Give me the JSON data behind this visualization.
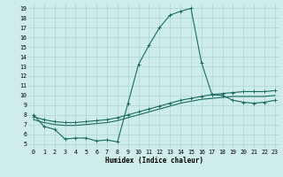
{
  "title": "",
  "xlabel": "Humidex (Indice chaleur)",
  "bg_color": "#ceecea",
  "grid_color": "#aed4d0",
  "line_color": "#1a6b60",
  "xlim": [
    -0.5,
    23.5
  ],
  "ylim": [
    4.5,
    19.5
  ],
  "xticks": [
    0,
    1,
    2,
    3,
    4,
    5,
    6,
    7,
    8,
    9,
    10,
    11,
    12,
    13,
    14,
    15,
    16,
    17,
    18,
    19,
    20,
    21,
    22,
    23
  ],
  "yticks": [
    5,
    6,
    7,
    8,
    9,
    10,
    11,
    12,
    13,
    14,
    15,
    16,
    17,
    18,
    19
  ],
  "series1_x": [
    0,
    1,
    2,
    3,
    4,
    5,
    6,
    7,
    8,
    9,
    10,
    11,
    12,
    13,
    14,
    15,
    16,
    17,
    18,
    19,
    20,
    21,
    22,
    23
  ],
  "series1_y": [
    8.0,
    6.8,
    6.5,
    5.5,
    5.6,
    5.6,
    5.3,
    5.4,
    5.2,
    9.2,
    13.2,
    15.2,
    17.0,
    18.3,
    18.7,
    19.0,
    13.4,
    10.1,
    10.0,
    9.5,
    9.3,
    9.2,
    9.3,
    9.5
  ],
  "series2_x": [
    0,
    1,
    2,
    3,
    4,
    5,
    6,
    7,
    8,
    9,
    10,
    11,
    12,
    13,
    14,
    15,
    16,
    17,
    18,
    19,
    20,
    21,
    22,
    23
  ],
  "series2_y": [
    7.8,
    7.5,
    7.3,
    7.2,
    7.2,
    7.3,
    7.4,
    7.5,
    7.7,
    8.0,
    8.3,
    8.6,
    8.9,
    9.2,
    9.5,
    9.7,
    9.9,
    10.1,
    10.2,
    10.3,
    10.4,
    10.4,
    10.4,
    10.5
  ],
  "series3_x": [
    0,
    1,
    2,
    3,
    4,
    5,
    6,
    7,
    8,
    9,
    10,
    11,
    12,
    13,
    14,
    15,
    16,
    17,
    18,
    19,
    20,
    21,
    22,
    23
  ],
  "series3_y": [
    7.5,
    7.2,
    7.0,
    6.9,
    6.9,
    7.0,
    7.1,
    7.2,
    7.4,
    7.7,
    8.0,
    8.3,
    8.6,
    8.9,
    9.2,
    9.4,
    9.6,
    9.7,
    9.8,
    9.9,
    9.9,
    9.9,
    9.9,
    10.0
  ],
  "xlabel_fontsize": 5.5,
  "tick_fontsize": 4.8
}
